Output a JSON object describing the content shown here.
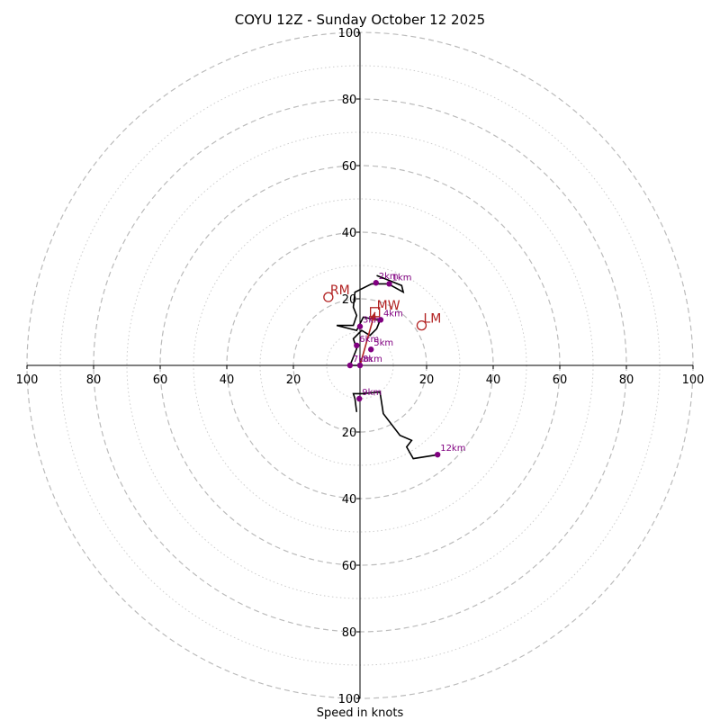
{
  "chart_data": {
    "type": "scatter",
    "subtype": "hodograph",
    "title": "COYU 12Z - Sunday October 12 2025",
    "xlabel": "Speed in knots",
    "xlim": [
      -100,
      100
    ],
    "ylim": [
      -100,
      100
    ],
    "rings_major": [
      20,
      40,
      60,
      80,
      100
    ],
    "rings_minor": [
      10,
      30,
      50,
      70,
      90
    ],
    "x_ticks": [
      "100",
      "80",
      "60",
      "40",
      "20",
      "20",
      "40",
      "60",
      "80",
      "100"
    ],
    "y_ticks": [
      "100",
      "80",
      "60",
      "40",
      "20",
      "20",
      "40",
      "60",
      "80",
      "100"
    ],
    "trace_color": "#000000",
    "marker_color": "#800080",
    "vector_color": "#b22222",
    "trace": [
      [
        -1.0,
        -14.0
      ],
      [
        -1.5,
        -10.0
      ],
      [
        -2.0,
        -8.5
      ],
      [
        0.5,
        -8.5
      ],
      [
        6.0,
        -8.0
      ],
      [
        7.0,
        -14.5
      ],
      [
        12.0,
        -21.0
      ],
      [
        15.5,
        -22.5
      ],
      [
        14.0,
        -24.5
      ],
      [
        16.0,
        -28.0
      ],
      [
        23.5,
        -26.8
      ]
    ],
    "trace_upper": [
      [
        0.0,
        0.0
      ],
      [
        -3.0,
        0.0
      ],
      [
        -1.0,
        5.0
      ],
      [
        -2.0,
        8.0
      ],
      [
        0.5,
        10.5
      ],
      [
        3.0,
        9.0
      ],
      [
        5.0,
        11.0
      ],
      [
        6.0,
        13.5
      ],
      [
        1.0,
        14.5
      ],
      [
        -1.0,
        10.5
      ],
      [
        -7.0,
        12.0
      ],
      [
        -2.0,
        12.0
      ],
      [
        -1.0,
        15.0
      ],
      [
        -2.0,
        17.5
      ],
      [
        -1.5,
        22.0
      ],
      [
        3.5,
        24.5
      ],
      [
        8.5,
        24.5
      ],
      [
        13.0,
        22.0
      ],
      [
        12.5,
        24.0
      ],
      [
        7.5,
        26.0
      ],
      [
        5.0,
        27.0
      ]
    ],
    "height_points": [
      {
        "label": "1km",
        "x": 8.8,
        "y": 24.5
      },
      {
        "label": "2km",
        "x": 4.8,
        "y": 24.8
      },
      {
        "label": "3km",
        "x": 0.0,
        "y": 11.7
      },
      {
        "label": "4km",
        "x": 6.2,
        "y": 13.7
      },
      {
        "label": "5km",
        "x": 3.3,
        "y": 4.8
      },
      {
        "label": "6km",
        "x": -1.0,
        "y": 6.0
      },
      {
        "label": "7km",
        "x": -3.0,
        "y": 0.0
      },
      {
        "label": "8km",
        "x": 0.0,
        "y": 0.0
      },
      {
        "label": "9km",
        "x": -0.2,
        "y": -10.0
      },
      {
        "label": "12km",
        "x": 23.3,
        "y": -26.8
      }
    ],
    "motion_markers": [
      {
        "label": "RM",
        "shape": "circle",
        "x": -9.5,
        "y": 20.5
      },
      {
        "label": "LM",
        "shape": "circle",
        "x": 18.5,
        "y": 12.0
      },
      {
        "label": "MW",
        "shape": "square",
        "x": 4.5,
        "y": 16.0
      }
    ],
    "mean_wind_vector": {
      "from": [
        0.0,
        0.0
      ],
      "to": [
        4.5,
        16.0
      ]
    }
  }
}
